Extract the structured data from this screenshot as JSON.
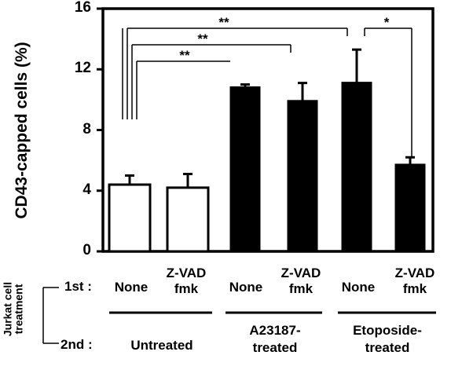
{
  "chart_data": {
    "type": "bar",
    "ylabel": "CD43-capped cells (%)",
    "ylim": [
      0,
      16
    ],
    "yticks": [
      "0",
      "4",
      "8",
      "12",
      "16"
    ],
    "bars": [
      {
        "value": 4.4,
        "error": 0.6,
        "fill": "white"
      },
      {
        "value": 4.2,
        "error": 0.9,
        "fill": "white"
      },
      {
        "value": 10.8,
        "error": 0.2,
        "fill": "black"
      },
      {
        "value": 9.9,
        "error": 1.2,
        "fill": "black"
      },
      {
        "value": 11.1,
        "error": 2.2,
        "fill": "black"
      },
      {
        "value": 5.7,
        "error": 0.5,
        "fill": "black"
      }
    ],
    "significance": [
      {
        "from": 0,
        "to": 4,
        "label": "**"
      },
      {
        "from": 0,
        "to": 3,
        "label": "**"
      },
      {
        "from": 0,
        "to": 2,
        "label": "**"
      },
      {
        "from": 4,
        "to": 5,
        "label": "*"
      }
    ]
  },
  "treatment": {
    "row_title": "Jurkat cell treatment",
    "row_title_line1": "Jurkat cell",
    "row_title_line2": "treatment",
    "first_label": "1st :",
    "second_label": "2nd :",
    "first": [
      "None",
      "Z-VAD fmk",
      "None",
      "Z-VAD fmk",
      "None",
      "Z-VAD fmk"
    ],
    "first_lines": [
      [
        "None"
      ],
      [
        "Z-VAD",
        "fmk"
      ],
      [
        "None"
      ],
      [
        "Z-VAD",
        "fmk"
      ],
      [
        "None"
      ],
      [
        "Z-VAD",
        "fmk"
      ]
    ],
    "second": [
      "Untreated",
      "A23187-treated",
      "Etoposide-treated"
    ],
    "second_lines": [
      [
        "Untreated"
      ],
      [
        "A23187-",
        "treated"
      ],
      [
        "Etoposide-",
        "treated"
      ]
    ]
  },
  "colors": {
    "axis": "#000000",
    "bar_black": "#000000",
    "bar_white": "#ffffff"
  }
}
